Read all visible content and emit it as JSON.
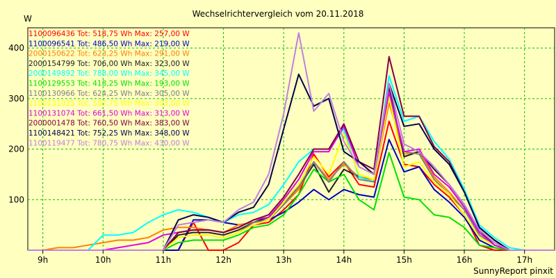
{
  "chart_data": {
    "type": "line",
    "title": "Wechselrichtervergleich vom 20.11.2018",
    "ylabel": "W",
    "xlabel": "",
    "footer": "SunnyReport pinxit",
    "ylim": [
      0,
      440
    ],
    "xlim": [
      8.75,
      17.5
    ],
    "y_ticks": [
      100,
      200,
      300,
      400
    ],
    "x_ticks": [
      {
        "value": 9,
        "label": "9h"
      },
      {
        "value": 10,
        "label": "10h"
      },
      {
        "value": 11,
        "label": "11h"
      },
      {
        "value": 12,
        "label": "12h"
      },
      {
        "value": 13,
        "label": "13h"
      },
      {
        "value": 14,
        "label": "14h"
      },
      {
        "value": 15,
        "label": "15h"
      },
      {
        "value": 16,
        "label": "16h"
      },
      {
        "value": 17,
        "label": "17h"
      }
    ],
    "grid": true,
    "legend_position": "top-left",
    "x": [
      8.75,
      9.0,
      9.25,
      9.5,
      9.75,
      10.0,
      10.25,
      10.5,
      10.75,
      11.0,
      11.25,
      11.5,
      11.75,
      12.0,
      12.25,
      12.5,
      12.75,
      13.0,
      13.25,
      13.5,
      13.75,
      14.0,
      14.25,
      14.5,
      14.75,
      15.0,
      15.25,
      15.5,
      15.75,
      16.0,
      16.25,
      16.5,
      16.75,
      17.0,
      17.25,
      17.5
    ],
    "series": [
      {
        "name": "1100096436",
        "text": "1100096436 Tot: 518,75 Wh Max: 257,00 W",
        "color": "#ff0000",
        "values": [
          0,
          0,
          0,
          0,
          0,
          0,
          0,
          0,
          0,
          0,
          0,
          55,
          0,
          0,
          15,
          50,
          55,
          80,
          110,
          190,
          145,
          175,
          130,
          125,
          255,
          170,
          165,
          130,
          105,
          70,
          10,
          0,
          0,
          0,
          0,
          0
        ]
      },
      {
        "name": "1100096541",
        "text": "1100096541 Tot: 486,50 Wh Max: 219,00 W",
        "color": "#0000c0",
        "values": [
          0,
          0,
          0,
          0,
          0,
          0,
          0,
          0,
          0,
          0,
          0,
          60,
          60,
          55,
          50,
          55,
          60,
          75,
          95,
          120,
          100,
          120,
          110,
          105,
          219,
          155,
          165,
          120,
          95,
          65,
          20,
          5,
          0,
          0,
          0,
          0
        ]
      },
      {
        "name": "2000150622",
        "text": "2000150622 Tot: 623,25 Wh Max: 291,00 W",
        "color": "#ff8000",
        "values": [
          0,
          0,
          5,
          5,
          10,
          15,
          20,
          20,
          25,
          40,
          45,
          45,
          40,
          35,
          50,
          55,
          60,
          90,
          120,
          175,
          140,
          170,
          145,
          140,
          291,
          190,
          195,
          145,
          115,
          80,
          30,
          10,
          0,
          0,
          0,
          0
        ]
      },
      {
        "name": "2000154799",
        "text": "2000154799 Tot: 706,00 Wh Max: 323,00 W",
        "color": "#202020",
        "values": [
          0,
          0,
          0,
          0,
          0,
          0,
          0,
          0,
          0,
          0,
          30,
          35,
          35,
          30,
          40,
          55,
          65,
          95,
          125,
          170,
          115,
          160,
          145,
          135,
          323,
          185,
          195,
          160,
          130,
          90,
          40,
          10,
          0,
          0,
          0,
          0
        ]
      },
      {
        "name": "2000149892",
        "text": "2000149892 Tot: 788,00 Wh Max: 345,00 W",
        "color": "#00ffff",
        "values": [
          0,
          0,
          0,
          0,
          0,
          30,
          30,
          35,
          55,
          70,
          80,
          75,
          65,
          55,
          70,
          75,
          90,
          130,
          175,
          200,
          200,
          240,
          145,
          135,
          345,
          255,
          265,
          215,
          180,
          120,
          50,
          25,
          5,
          0,
          0,
          0
        ]
      },
      {
        "name": "1100129553",
        "text": "1100129553 Tot: 418,25 Wh Max: 193,00 W",
        "color": "#00e000",
        "values": [
          0,
          0,
          0,
          0,
          0,
          0,
          0,
          0,
          0,
          0,
          15,
          20,
          20,
          20,
          30,
          45,
          50,
          70,
          110,
          160,
          135,
          150,
          100,
          80,
          193,
          105,
          100,
          70,
          65,
          45,
          10,
          5,
          0,
          0,
          0,
          0
        ]
      },
      {
        "name": "1100130966",
        "text": "1100130966 Tot: 624,25 Wh Max: 305,00 W",
        "color": "#808080",
        "values": [
          0,
          0,
          0,
          0,
          0,
          0,
          0,
          0,
          0,
          0,
          25,
          30,
          30,
          25,
          35,
          55,
          60,
          90,
          125,
          175,
          135,
          175,
          140,
          135,
          305,
          195,
          190,
          140,
          110,
          80,
          30,
          10,
          0,
          0,
          0,
          0
        ]
      },
      {
        "name": "1100131025",
        "text": "1100131025 Tot: 587,75 Wh Max: 303,00 W",
        "color": "#ffff00",
        "values": [
          0,
          0,
          0,
          0,
          0,
          0,
          0,
          0,
          0,
          0,
          25,
          30,
          30,
          25,
          35,
          50,
          60,
          95,
          130,
          185,
          150,
          230,
          150,
          140,
          303,
          165,
          175,
          135,
          110,
          70,
          25,
          10,
          0,
          0,
          0,
          0
        ]
      },
      {
        "name": "1100131074",
        "text": "1100131074 Tot: 661,50 Wh Max: 313,00 W",
        "color": "#e000e0",
        "values": [
          0,
          0,
          0,
          0,
          0,
          0,
          5,
          10,
          15,
          30,
          35,
          40,
          40,
          35,
          45,
          60,
          65,
          100,
          140,
          195,
          195,
          245,
          165,
          150,
          313,
          195,
          200,
          150,
          125,
          85,
          35,
          10,
          0,
          0,
          0,
          0
        ]
      },
      {
        "name": "2000001478",
        "text": "2000001478 Tot: 760,50 Wh Max: 383,00 W",
        "color": "#800040",
        "values": [
          0,
          0,
          0,
          0,
          0,
          0,
          0,
          0,
          0,
          0,
          35,
          40,
          40,
          35,
          45,
          60,
          70,
          105,
          150,
          200,
          200,
          250,
          175,
          160,
          383,
          265,
          265,
          205,
          175,
          115,
          45,
          20,
          0,
          0,
          0,
          0
        ]
      },
      {
        "name": "1100148421",
        "text": "1100148421 Tot: 752,25 Wh Max: 348,00 W",
        "color": "#000050",
        "values": [
          0,
          0,
          0,
          0,
          0,
          0,
          0,
          0,
          0,
          0,
          60,
          70,
          65,
          55,
          75,
          85,
          130,
          240,
          348,
          285,
          300,
          195,
          175,
          150,
          330,
          245,
          250,
          200,
          170,
          115,
          45,
          20,
          0,
          0,
          0,
          0
        ]
      },
      {
        "name": "1100119477",
        "text": "1100119477 Tot: 780,75 Wh Max: 430,00 W",
        "color": "#c080e0",
        "values": [
          0,
          0,
          0,
          0,
          0,
          0,
          0,
          0,
          0,
          0,
          50,
          55,
          60,
          55,
          80,
          95,
          150,
          270,
          430,
          275,
          310,
          215,
          165,
          150,
          330,
          210,
          195,
          165,
          130,
          90,
          40,
          15,
          0,
          0,
          0,
          0
        ]
      }
    ]
  }
}
